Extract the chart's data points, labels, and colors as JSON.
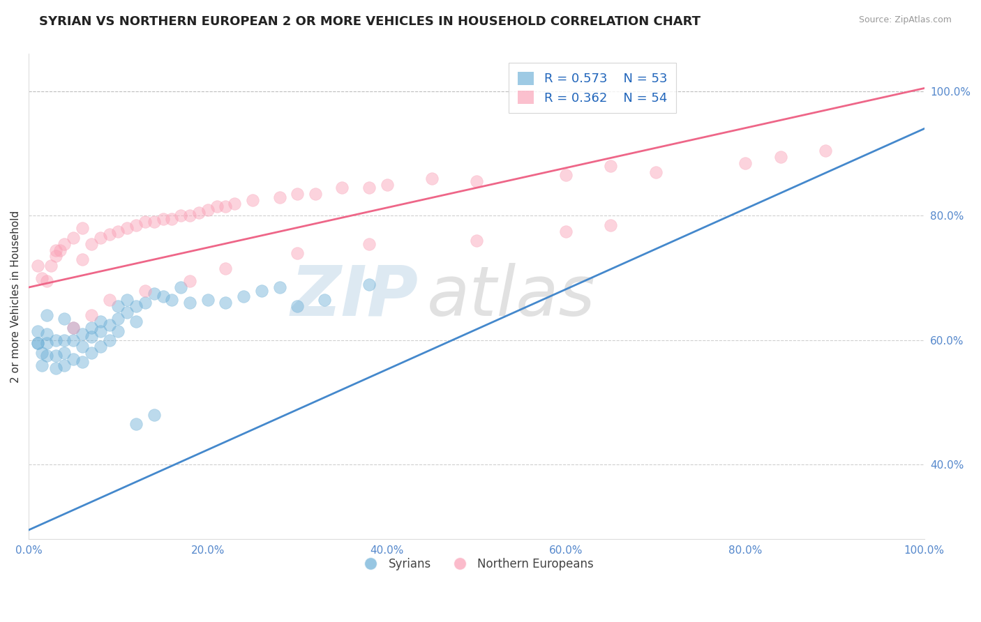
{
  "title": "SYRIAN VS NORTHERN EUROPEAN 2 OR MORE VEHICLES IN HOUSEHOLD CORRELATION CHART",
  "source": "Source: ZipAtlas.com",
  "xlabel": "",
  "ylabel": "2 or more Vehicles in Household",
  "xlim": [
    0.0,
    1.0
  ],
  "ylim": [
    0.28,
    1.06
  ],
  "xticks": [
    0.0,
    0.2,
    0.4,
    0.6,
    0.8,
    1.0
  ],
  "yticks": [
    0.4,
    0.6,
    0.8,
    1.0
  ],
  "ytick_labels": [
    "40.0%",
    "60.0%",
    "80.0%",
    "100.0%"
  ],
  "xtick_labels": [
    "0.0%",
    "20.0%",
    "40.0%",
    "60.0%",
    "80.0%",
    "100.0%"
  ],
  "blue_color": "#6baed6",
  "pink_color": "#fa9fb5",
  "blue_line_color": "#4488cc",
  "pink_line_color": "#ee6688",
  "blue_R": 0.573,
  "blue_N": 53,
  "pink_R": 0.362,
  "pink_N": 54,
  "blue_line_start_x": 0.0,
  "blue_line_start_y": 0.295,
  "blue_line_end_x": 1.0,
  "blue_line_end_y": 0.94,
  "pink_line_start_x": 0.0,
  "pink_line_start_y": 0.685,
  "pink_line_end_x": 1.0,
  "pink_line_end_y": 1.005,
  "watermark_zip": "ZIP",
  "watermark_atlas": "atlas",
  "background_color": "#ffffff",
  "grid_color": "#bbbbbb",
  "syrians_x": [
    0.01,
    0.01,
    0.01,
    0.015,
    0.015,
    0.02,
    0.02,
    0.02,
    0.02,
    0.03,
    0.03,
    0.03,
    0.04,
    0.04,
    0.04,
    0.04,
    0.05,
    0.05,
    0.05,
    0.06,
    0.06,
    0.06,
    0.07,
    0.07,
    0.07,
    0.08,
    0.08,
    0.08,
    0.09,
    0.09,
    0.1,
    0.1,
    0.1,
    0.11,
    0.11,
    0.12,
    0.12,
    0.13,
    0.14,
    0.15,
    0.16,
    0.17,
    0.18,
    0.2,
    0.22,
    0.24,
    0.26,
    0.28,
    0.3,
    0.33,
    0.38,
    0.12,
    0.14
  ],
  "syrians_y": [
    0.595,
    0.615,
    0.595,
    0.56,
    0.58,
    0.575,
    0.595,
    0.61,
    0.64,
    0.555,
    0.575,
    0.6,
    0.56,
    0.58,
    0.6,
    0.635,
    0.57,
    0.6,
    0.62,
    0.565,
    0.59,
    0.61,
    0.58,
    0.605,
    0.62,
    0.59,
    0.615,
    0.63,
    0.6,
    0.625,
    0.615,
    0.635,
    0.655,
    0.645,
    0.665,
    0.63,
    0.655,
    0.66,
    0.675,
    0.67,
    0.665,
    0.685,
    0.66,
    0.665,
    0.66,
    0.67,
    0.68,
    0.685,
    0.655,
    0.665,
    0.69,
    0.465,
    0.48
  ],
  "northern_x": [
    0.01,
    0.015,
    0.02,
    0.025,
    0.03,
    0.035,
    0.04,
    0.05,
    0.06,
    0.06,
    0.07,
    0.08,
    0.09,
    0.1,
    0.11,
    0.12,
    0.13,
    0.14,
    0.15,
    0.16,
    0.17,
    0.18,
    0.19,
    0.2,
    0.21,
    0.22,
    0.23,
    0.25,
    0.28,
    0.3,
    0.32,
    0.35,
    0.38,
    0.4,
    0.45,
    0.5,
    0.6,
    0.65,
    0.7,
    0.8,
    0.84,
    0.89,
    0.03,
    0.05,
    0.07,
    0.09,
    0.13,
    0.18,
    0.22,
    0.3,
    0.38,
    0.5,
    0.6,
    0.65
  ],
  "northern_y": [
    0.72,
    0.7,
    0.695,
    0.72,
    0.735,
    0.745,
    0.755,
    0.765,
    0.73,
    0.78,
    0.755,
    0.765,
    0.77,
    0.775,
    0.78,
    0.785,
    0.79,
    0.79,
    0.795,
    0.795,
    0.8,
    0.8,
    0.805,
    0.81,
    0.815,
    0.815,
    0.82,
    0.825,
    0.83,
    0.835,
    0.835,
    0.845,
    0.845,
    0.85,
    0.86,
    0.855,
    0.865,
    0.88,
    0.87,
    0.885,
    0.895,
    0.905,
    0.745,
    0.62,
    0.64,
    0.665,
    0.68,
    0.695,
    0.715,
    0.74,
    0.755,
    0.76,
    0.775,
    0.785
  ]
}
